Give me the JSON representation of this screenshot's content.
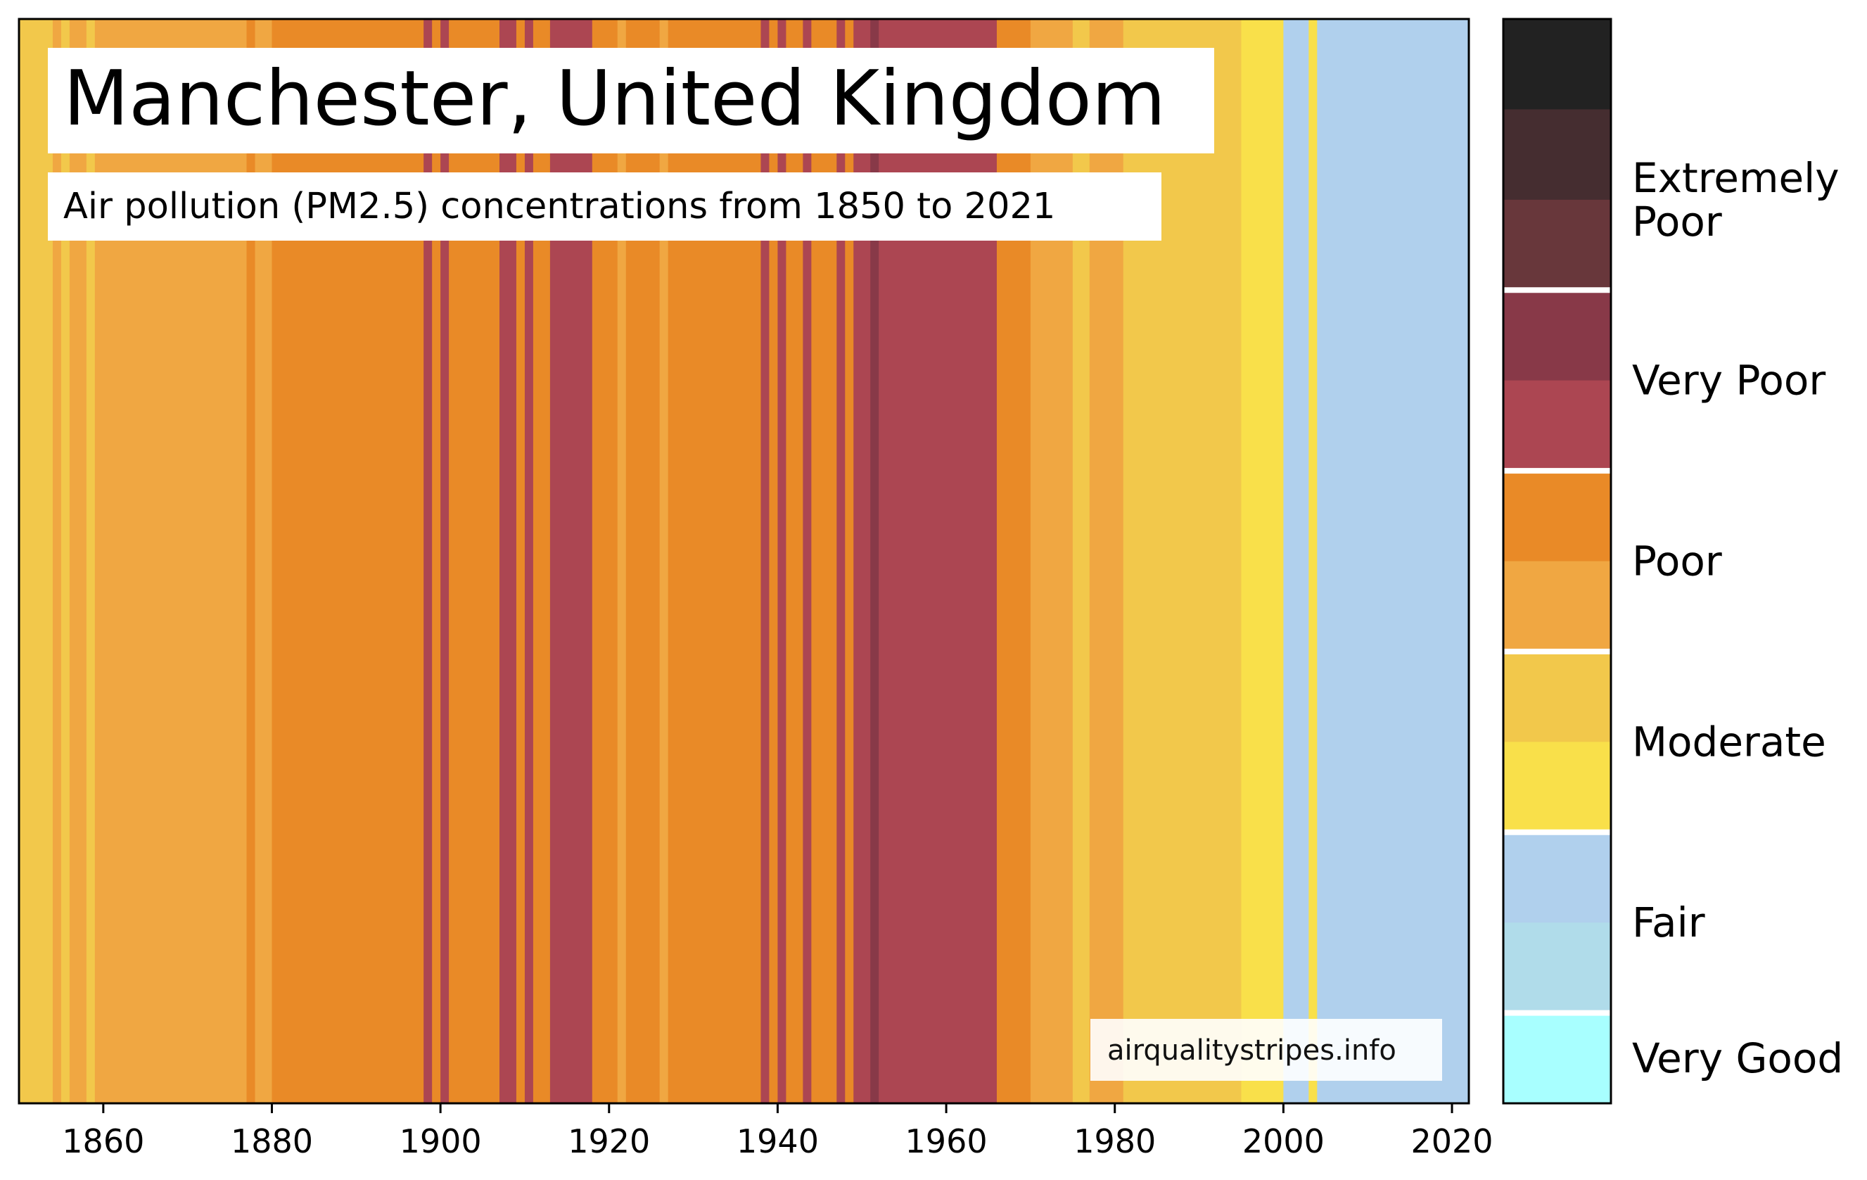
{
  "chart_data": {
    "type": "heatmap",
    "title": "Manchester, United Kingdom",
    "subtitle": "Air pollution (PM2.5) concentrations from 1850 to 2021",
    "watermark": "airqualitystripes.info",
    "xlim": [
      1850,
      2022
    ],
    "x_ticks": [
      "1860",
      "1880",
      "1900",
      "1920",
      "1940",
      "1960",
      "1980",
      "2000",
      "2020"
    ],
    "palette": {
      "very_good": "#a8ffff",
      "good_light_blue": "#b0dcea",
      "fair": "#b0d0ed",
      "moderate_light": "#f9e04a",
      "moderate": "#f2c84b",
      "poor_light": "#f0a742",
      "poor": "#e98a27",
      "very_poor_light": "#ac4652",
      "very_poor": "#883948",
      "extremely_poor_light": "#68373b",
      "extremely_poor": "#452d30",
      "extreme": "#222222"
    },
    "stripes": [
      {
        "from": 1850,
        "to": 1854,
        "level": "moderate"
      },
      {
        "from": 1854,
        "to": 1855,
        "level": "poor_light"
      },
      {
        "from": 1855,
        "to": 1856,
        "level": "moderate"
      },
      {
        "from": 1856,
        "to": 1858,
        "level": "poor_light"
      },
      {
        "from": 1858,
        "to": 1859,
        "level": "moderate"
      },
      {
        "from": 1859,
        "to": 1877,
        "level": "poor_light"
      },
      {
        "from": 1877,
        "to": 1878,
        "level": "poor"
      },
      {
        "from": 1878,
        "to": 1880,
        "level": "poor_light"
      },
      {
        "from": 1880,
        "to": 1898,
        "level": "poor"
      },
      {
        "from": 1898,
        "to": 1899,
        "level": "very_poor_light"
      },
      {
        "from": 1899,
        "to": 1900,
        "level": "poor"
      },
      {
        "from": 1900,
        "to": 1901,
        "level": "very_poor_light"
      },
      {
        "from": 1901,
        "to": 1907,
        "level": "poor"
      },
      {
        "from": 1907,
        "to": 1909,
        "level": "very_poor_light"
      },
      {
        "from": 1909,
        "to": 1910,
        "level": "poor"
      },
      {
        "from": 1910,
        "to": 1911,
        "level": "very_poor_light"
      },
      {
        "from": 1911,
        "to": 1913,
        "level": "poor"
      },
      {
        "from": 1913,
        "to": 1918,
        "level": "very_poor_light"
      },
      {
        "from": 1918,
        "to": 1921,
        "level": "poor"
      },
      {
        "from": 1921,
        "to": 1922,
        "level": "poor_light"
      },
      {
        "from": 1922,
        "to": 1926,
        "level": "poor"
      },
      {
        "from": 1926,
        "to": 1927,
        "level": "poor_light"
      },
      {
        "from": 1927,
        "to": 1938,
        "level": "poor"
      },
      {
        "from": 1938,
        "to": 1939,
        "level": "very_poor_light"
      },
      {
        "from": 1939,
        "to": 1940,
        "level": "poor"
      },
      {
        "from": 1940,
        "to": 1941,
        "level": "very_poor_light"
      },
      {
        "from": 1941,
        "to": 1943,
        "level": "poor"
      },
      {
        "from": 1943,
        "to": 1944,
        "level": "very_poor_light"
      },
      {
        "from": 1944,
        "to": 1947,
        "level": "poor"
      },
      {
        "from": 1947,
        "to": 1948,
        "level": "very_poor_light"
      },
      {
        "from": 1948,
        "to": 1949,
        "level": "poor"
      },
      {
        "from": 1949,
        "to": 1951,
        "level": "very_poor_light"
      },
      {
        "from": 1951,
        "to": 1952,
        "level": "very_poor"
      },
      {
        "from": 1952,
        "to": 1966,
        "level": "very_poor_light"
      },
      {
        "from": 1966,
        "to": 1970,
        "level": "poor"
      },
      {
        "from": 1970,
        "to": 1975,
        "level": "poor_light"
      },
      {
        "from": 1975,
        "to": 1977,
        "level": "moderate"
      },
      {
        "from": 1977,
        "to": 1981,
        "level": "poor_light"
      },
      {
        "from": 1981,
        "to": 1995,
        "level": "moderate"
      },
      {
        "from": 1995,
        "to": 2000,
        "level": "moderate_light"
      },
      {
        "from": 2000,
        "to": 2003,
        "level": "fair"
      },
      {
        "from": 2003,
        "to": 2004,
        "level": "moderate_light"
      },
      {
        "from": 2004,
        "to": 2022,
        "level": "fair"
      }
    ],
    "legend": {
      "segments": [
        {
          "level": "extreme"
        },
        {
          "level": "extremely_poor"
        },
        {
          "level": "extremely_poor_light"
        },
        {
          "level": "very_poor"
        },
        {
          "level": "very_poor_light"
        },
        {
          "level": "poor"
        },
        {
          "level": "poor_light"
        },
        {
          "level": "moderate"
        },
        {
          "level": "moderate_light"
        },
        {
          "level": "fair"
        },
        {
          "level": "good_light_blue"
        },
        {
          "level": "very_good"
        }
      ],
      "labels": [
        "Extremely\nPoor",
        "Very Poor",
        "Poor",
        "Moderate",
        "Fair",
        "Very Good"
      ]
    }
  }
}
